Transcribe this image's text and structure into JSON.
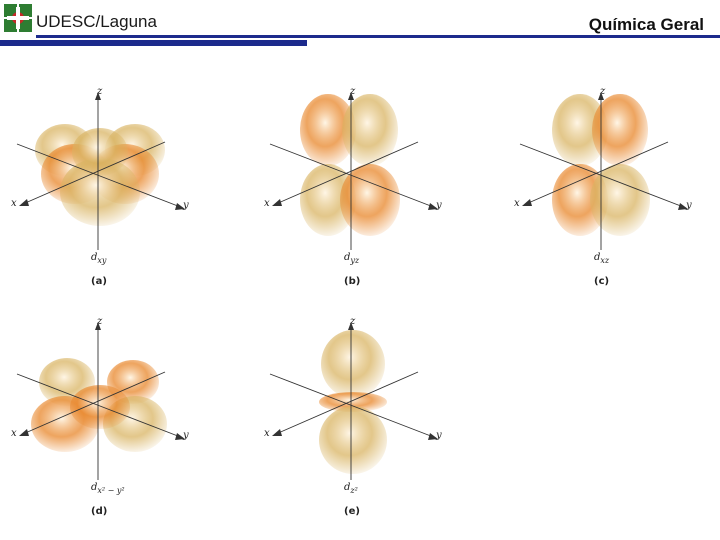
{
  "header": {
    "institution": "UDESC/Laguna",
    "course": "Química Geral",
    "accent_color": "#1c2a8c",
    "logo_green": "#2e7d32",
    "logo_red": "#c62828"
  },
  "axes": {
    "x": "x",
    "y": "y",
    "z": "z"
  },
  "panels": [
    {
      "tag": "(a)",
      "orbital": "d",
      "sub": "xy"
    },
    {
      "tag": "(b)",
      "orbital": "d",
      "sub": "yz"
    },
    {
      "tag": "(c)",
      "orbital": "d",
      "sub": "xz"
    },
    {
      "tag": "(d)",
      "orbital": "d",
      "sub": "x² − y²"
    },
    {
      "tag": "(e)",
      "orbital": "d",
      "sub": "z²"
    }
  ],
  "colors": {
    "lobe_orange": "#e8862a",
    "lobe_tan": "#d9b463"
  }
}
